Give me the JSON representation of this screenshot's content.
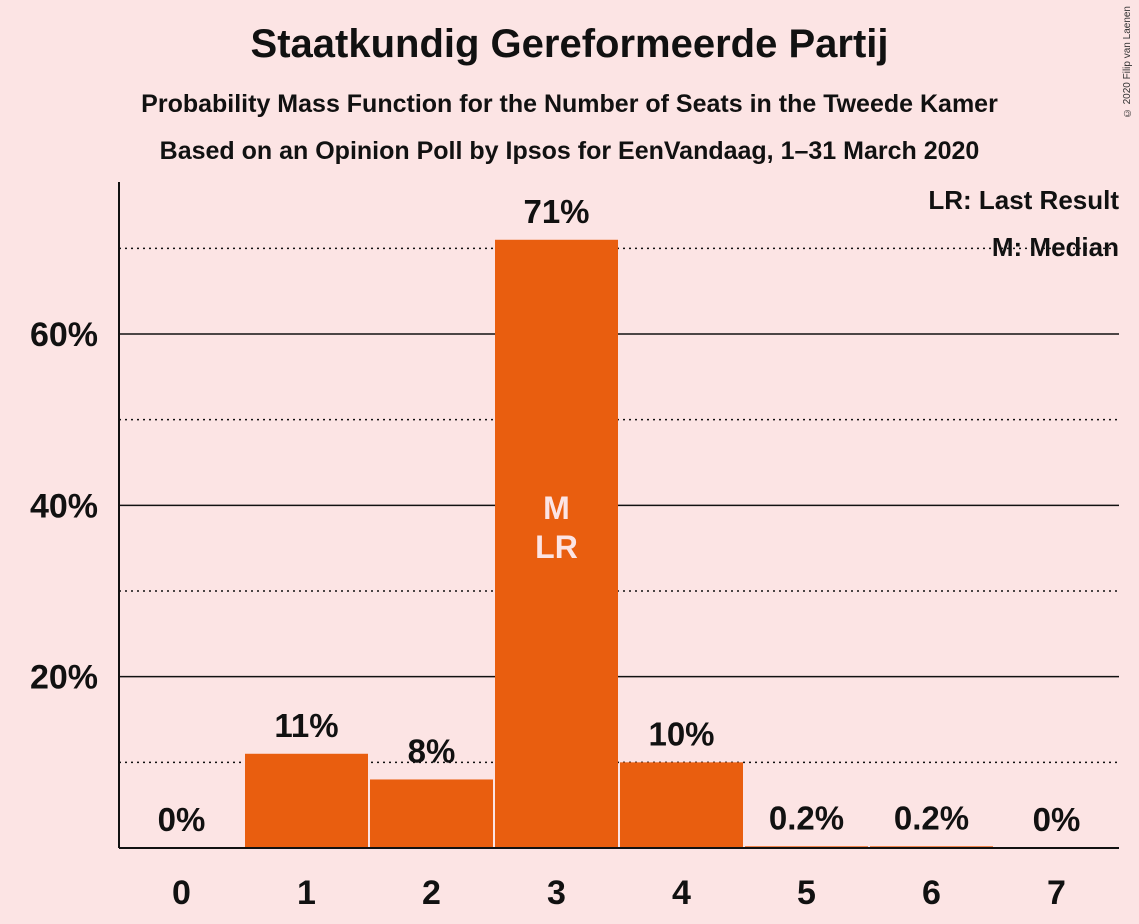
{
  "chart_data": {
    "type": "bar",
    "title": "Staatkundig Gereformeerde Partij",
    "subtitle": "Probability Mass Function for the Number of Seats in the Tweede Kamer",
    "subtitle2": "Based on an Opinion Poll by Ipsos for EenVandaag, 1–31 March 2020",
    "copyright": "© 2020 Filip van Laenen",
    "categories": [
      "0",
      "1",
      "2",
      "3",
      "4",
      "5",
      "6",
      "7"
    ],
    "values": [
      0,
      11,
      8,
      71,
      10,
      0.2,
      0.2,
      0
    ],
    "value_labels": [
      "0%",
      "11%",
      "8%",
      "71%",
      "10%",
      "0.2%",
      "0.2%",
      "0%"
    ],
    "ylim": [
      0,
      77
    ],
    "y_ticks": [
      20,
      40,
      60
    ],
    "y_tick_labels": [
      "20%",
      "40%",
      "60%"
    ],
    "y_minor_ticks": [
      10,
      30,
      50,
      70
    ],
    "bar_color": "#e95e0f",
    "background": "#fce4e4",
    "median_seat": 3,
    "last_result_seat": 3,
    "bar_annotation": [
      "M",
      "LR"
    ],
    "legend": {
      "last_result": "LR: Last Result",
      "median": "M: Median"
    }
  }
}
